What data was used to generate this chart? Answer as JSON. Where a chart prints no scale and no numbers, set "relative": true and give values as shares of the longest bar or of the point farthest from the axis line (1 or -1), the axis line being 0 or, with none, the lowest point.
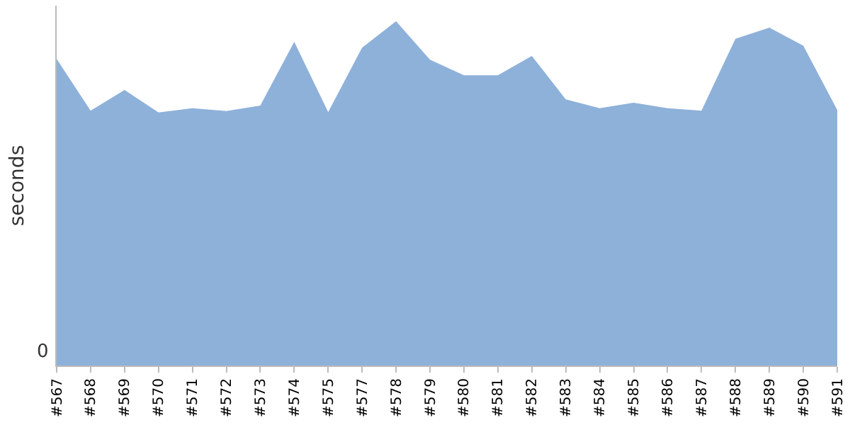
{
  "chart_data": {
    "type": "area",
    "relative": true,
    "ylabel": "seconds",
    "categories": [
      "#567",
      "#568",
      "#569",
      "#570",
      "#571",
      "#572",
      "#573",
      "#574",
      "#575",
      "#577",
      "#578",
      "#579",
      "#580",
      "#581",
      "#582",
      "#583",
      "#584",
      "#585",
      "#586",
      "#587",
      "#588",
      "#589",
      "#590",
      "#591"
    ],
    "series": [
      {
        "color": "#8eb1da",
        "values": [
          0.89,
          0.74,
          0.8,
          0.735,
          0.747,
          0.739,
          0.755,
          0.94,
          0.736,
          0.923,
          1,
          0.888,
          0.843,
          0.843,
          0.899,
          0.773,
          0.747,
          0.763,
          0.747,
          0.74,
          0.949,
          0.981,
          0.929,
          0.742
        ]
      }
    ],
    "annotations": [
      "0"
    ]
  }
}
